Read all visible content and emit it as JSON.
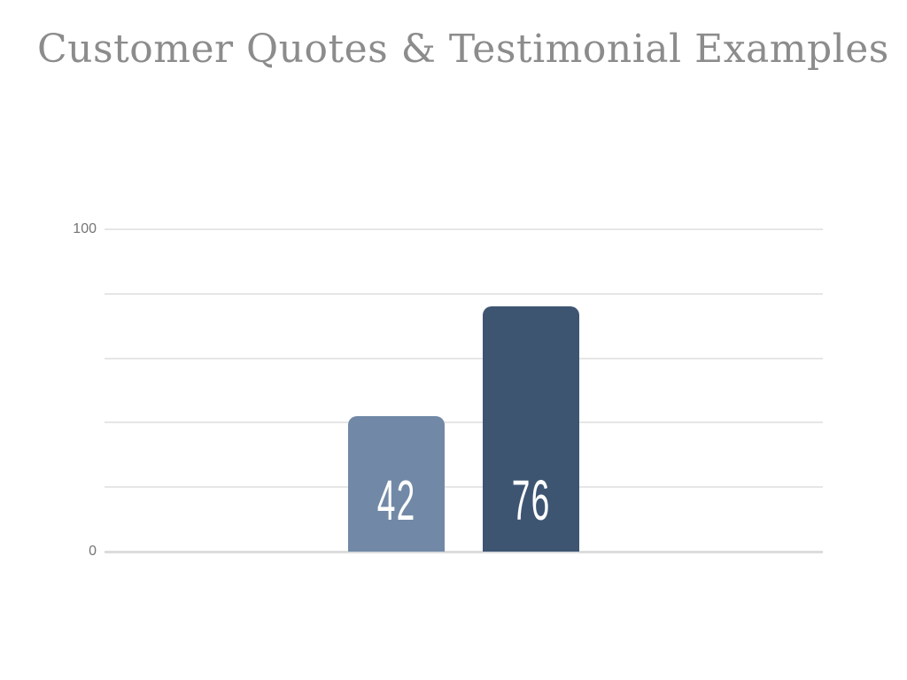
{
  "header": {
    "title": "Customer Quotes & Testimonial Examples",
    "title_color": "#8c8c8c"
  },
  "chart_data": {
    "type": "bar",
    "title": "Customer Quotes & Testimonial Examples",
    "categories": [
      "",
      ""
    ],
    "values": [
      42,
      76
    ],
    "value_labels": [
      "42",
      "76"
    ],
    "bar_colors": [
      "#7189A6",
      "#3E5572"
    ],
    "value_label_color": "#ffffff",
    "xlabel": "",
    "ylabel": "",
    "ylim": [
      0,
      100
    ],
    "ytick_labels": [
      "100",
      "0"
    ],
    "ytick_values": [
      100,
      0
    ],
    "gridline_values": [
      100,
      80,
      60,
      40,
      20,
      0
    ],
    "grid": true,
    "legend": false,
    "tick_color": "#757575",
    "gridline_color": "#e6e6e6",
    "baseline_color": "#dcdcdc",
    "background_color": "#ffffff"
  }
}
